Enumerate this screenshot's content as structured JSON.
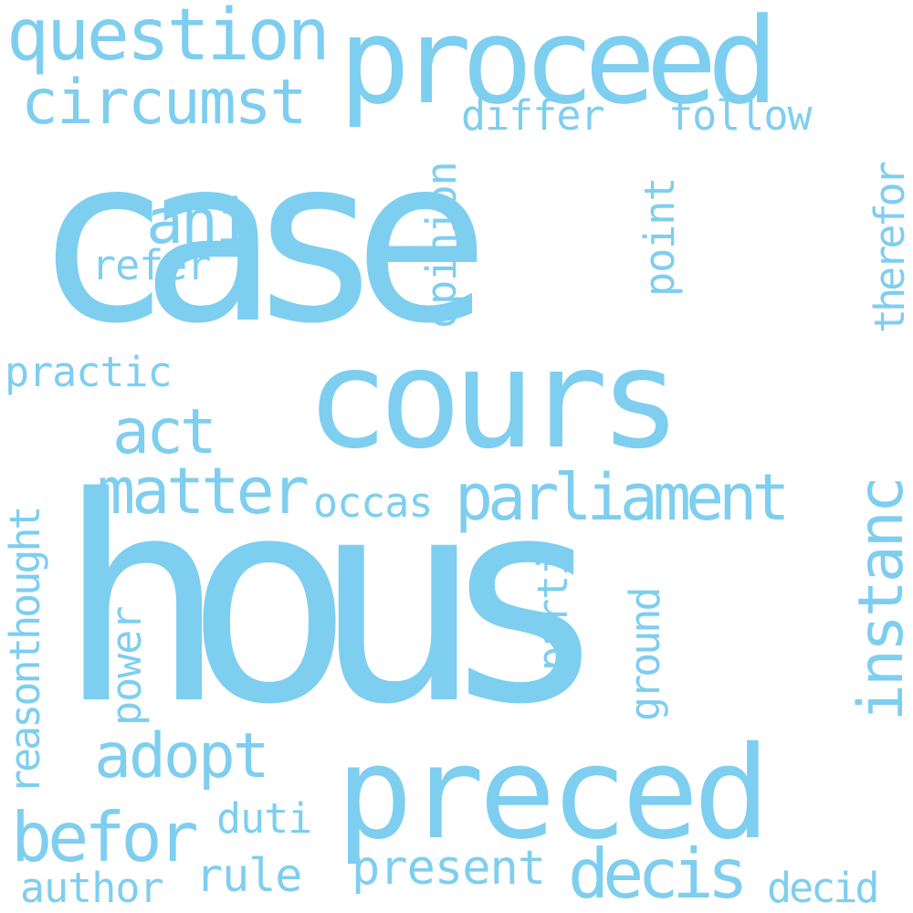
{
  "word_color": "#7ECEF0",
  "background_color": "#FFFFFF",
  "words": [
    {
      "text": "case",
      "orientation": "horizontal"
    },
    {
      "text": "hous",
      "orientation": "horizontal"
    },
    {
      "text": "cours",
      "orientation": "horizontal"
    },
    {
      "text": "preced",
      "orientation": "horizontal"
    },
    {
      "text": "proceed",
      "orientation": "horizontal"
    },
    {
      "text": "question",
      "orientation": "horizontal"
    },
    {
      "text": "circumst",
      "orientation": "horizontal"
    },
    {
      "text": "differ",
      "orientation": "horizontal"
    },
    {
      "text": "follow",
      "orientation": "horizontal"
    },
    {
      "text": "ani",
      "orientation": "horizontal"
    },
    {
      "text": "refer",
      "orientation": "horizontal"
    },
    {
      "text": "practic",
      "orientation": "horizontal"
    },
    {
      "text": "act",
      "orientation": "horizontal"
    },
    {
      "text": "matter",
      "orientation": "horizontal"
    },
    {
      "text": "occas",
      "orientation": "horizontal"
    },
    {
      "text": "parliament",
      "orientation": "horizontal"
    },
    {
      "text": "adopt",
      "orientation": "horizontal"
    },
    {
      "text": "befor",
      "orientation": "horizontal"
    },
    {
      "text": "duti",
      "orientation": "horizontal"
    },
    {
      "text": "author",
      "orientation": "horizontal"
    },
    {
      "text": "rule",
      "orientation": "horizontal"
    },
    {
      "text": "present",
      "orientation": "horizontal"
    },
    {
      "text": "decis",
      "orientation": "horizontal"
    },
    {
      "text": "decid",
      "orientation": "horizontal"
    },
    {
      "text": "opinion",
      "orientation": "vertical"
    },
    {
      "text": "point",
      "orientation": "vertical"
    },
    {
      "text": "therefor",
      "orientation": "vertical"
    },
    {
      "text": "instanc",
      "orientation": "vertical"
    },
    {
      "text": "thought",
      "orientation": "vertical"
    },
    {
      "text": "reason",
      "orientation": "vertical"
    },
    {
      "text": "power",
      "orientation": "vertical"
    },
    {
      "text": "parti",
      "orientation": "vertical"
    },
    {
      "text": "ground",
      "orientation": "vertical"
    }
  ]
}
